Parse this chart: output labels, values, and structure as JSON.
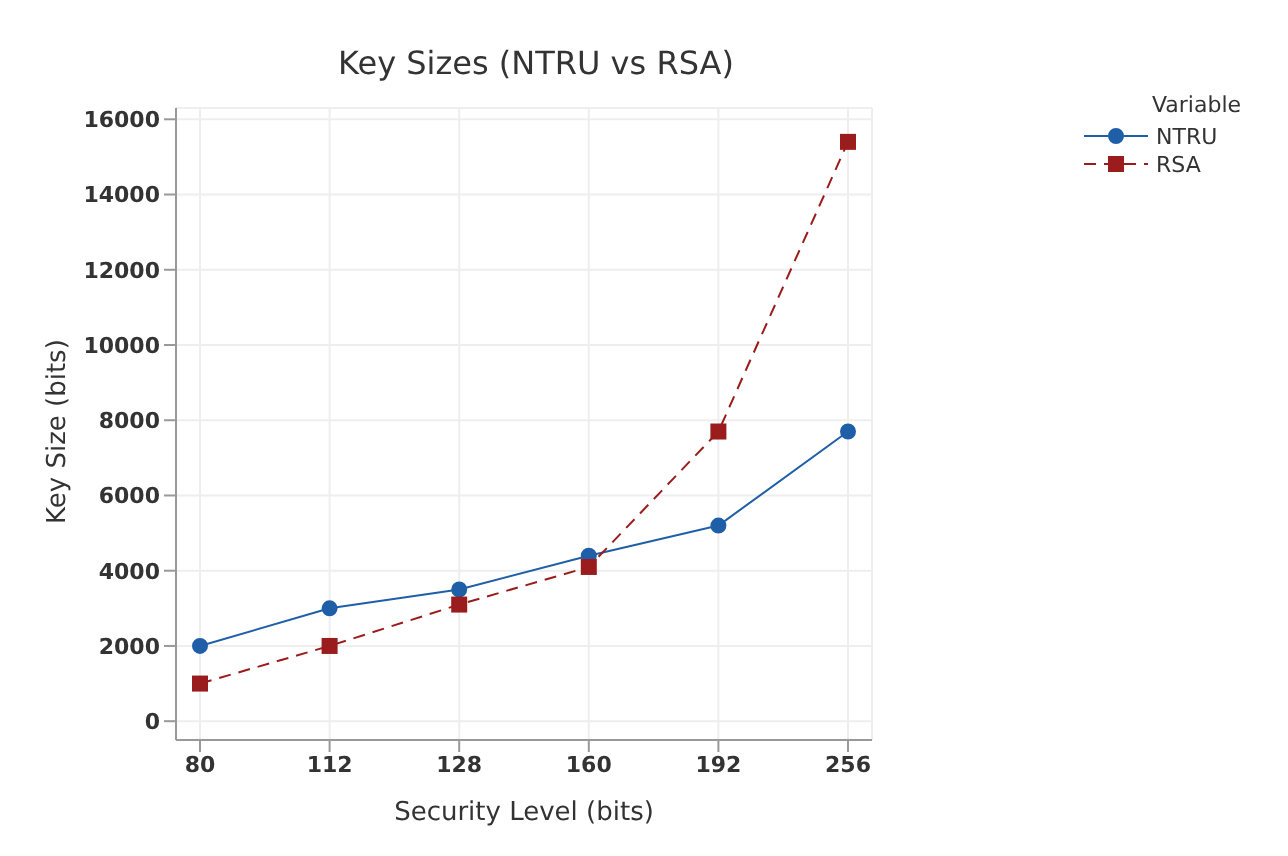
{
  "chart_data": {
    "type": "line",
    "title": "Key Sizes (NTRU vs RSA)",
    "xlabel": "Security Level (bits)",
    "ylabel": "Key Size (bits)",
    "legend_title": "Variable",
    "categories": [
      "80",
      "112",
      "128",
      "160",
      "192",
      "256"
    ],
    "series": [
      {
        "name": "NTRU",
        "color": "#1f5fa8",
        "values": [
          2000,
          3000,
          3500,
          4400,
          5200,
          7700
        ],
        "marker": "circle",
        "line_style": "solid"
      },
      {
        "name": "RSA",
        "color": "#9b1c1c",
        "values": [
          1000,
          2000,
          3100,
          4100,
          7700,
          15400
        ],
        "marker": "square",
        "line_style": "dashed"
      }
    ],
    "ylim": [
      -500,
      16300
    ],
    "yticks": [
      0,
      2000,
      4000,
      6000,
      8000,
      10000,
      12000,
      14000,
      16000
    ],
    "grid": true,
    "legend": "right"
  }
}
